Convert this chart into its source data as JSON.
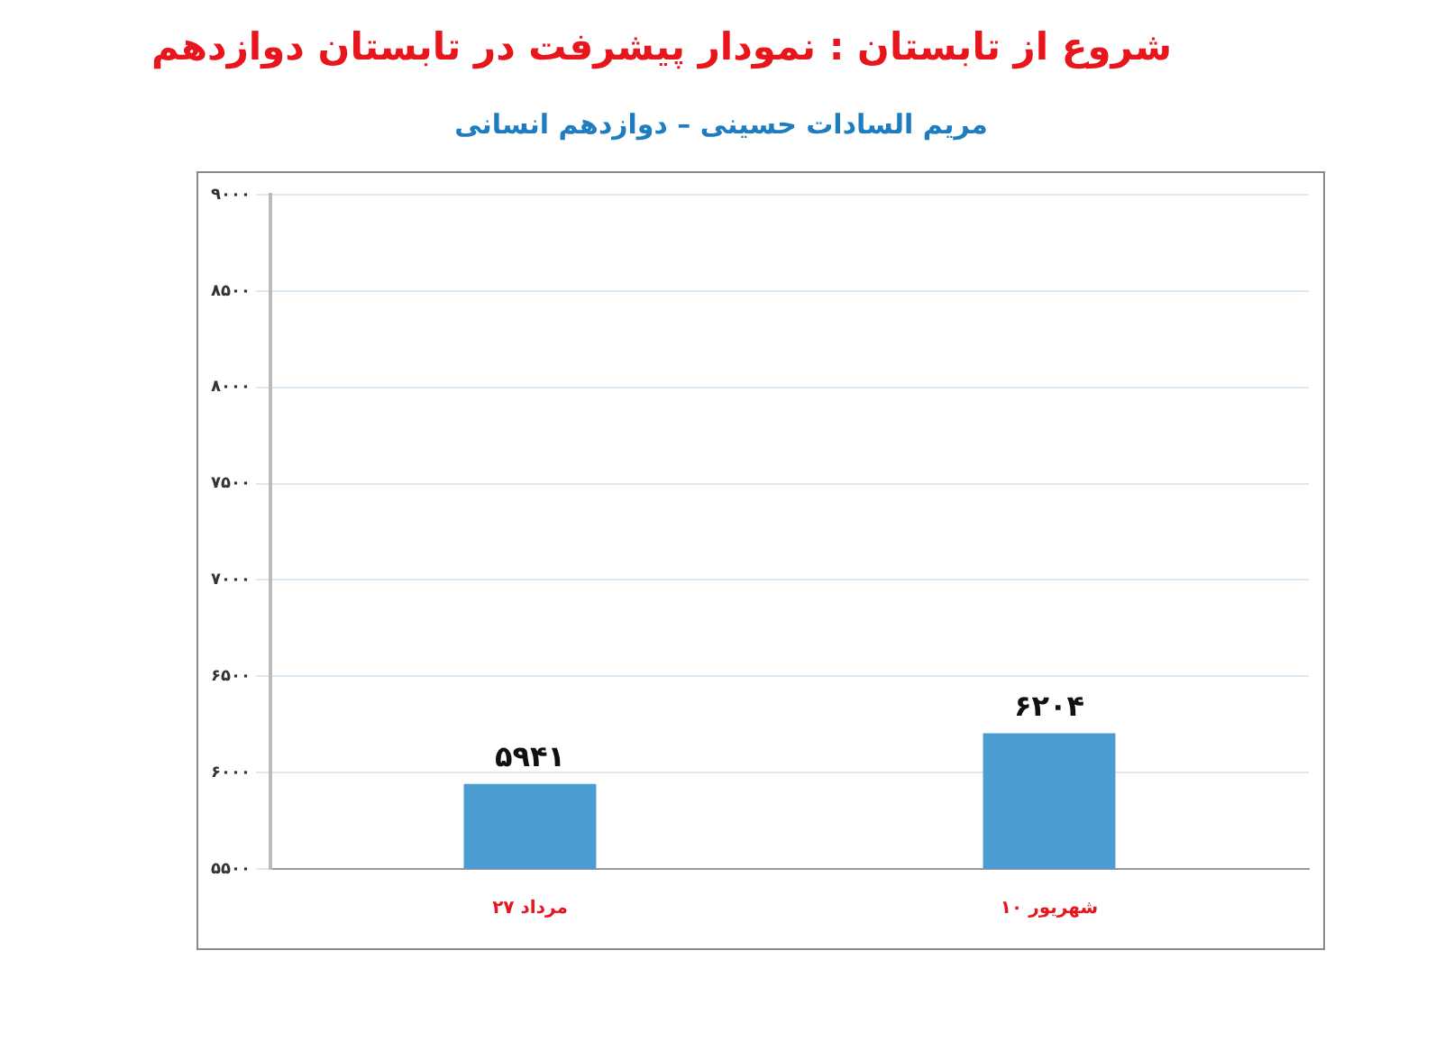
{
  "chart_data": {
    "type": "bar",
    "title": "شروع از تابستان : نمودار پیشرفت در تابستان دوازدهم",
    "subtitle": "مریم السادات حسینی – دوازدهم انسانی",
    "categories": [
      "۲۷ مرداد",
      "۱۰ شهریور"
    ],
    "values": [
      5941,
      6204
    ],
    "value_labels": [
      "۵۹۴۱",
      "۶۲۰۴"
    ],
    "color": "#4a9cd2",
    "ylim": [
      5500,
      9000
    ],
    "yticks": [
      {
        "value": 5500,
        "label": "۵۵۰۰"
      },
      {
        "value": 6000,
        "label": "۶۰۰۰"
      },
      {
        "value": 6500,
        "label": "۶۵۰۰"
      },
      {
        "value": 7000,
        "label": "۷۰۰۰"
      },
      {
        "value": 7500,
        "label": "۷۵۰۰"
      },
      {
        "value": 8000,
        "label": "۸۰۰۰"
      },
      {
        "value": 8500,
        "label": "۸۵۰۰"
      },
      {
        "value": 9000,
        "label": "۹۰۰۰"
      }
    ],
    "grid": "y",
    "legend": false
  }
}
